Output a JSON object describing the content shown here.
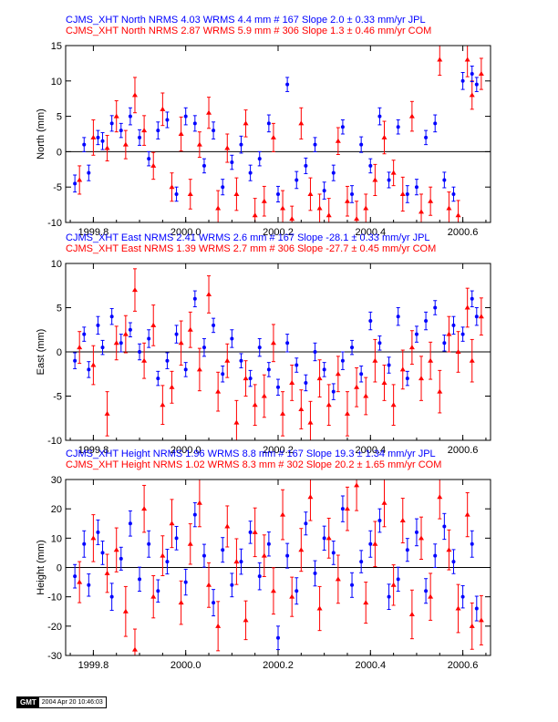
{
  "colors": {
    "jpl": "#0000ff",
    "com": "#ff0000",
    "axis": "#000000"
  },
  "stamp": {
    "logo": "GMT",
    "timestamp": "2004 Apr 20 10:46:03"
  },
  "chart_data": [
    {
      "type": "scatter",
      "component": "North",
      "ylabel": "North (mm)",
      "xlim": [
        1999.74,
        2000.66
      ],
      "ylim": [
        -10,
        15
      ],
      "xticks": [
        1999.8,
        2000.0,
        2000.2,
        2000.4,
        2000.6
      ],
      "xtick_labels": [
        "1999.8",
        "2000.0",
        "2000.2",
        "2000.4",
        "2000.6"
      ],
      "yticks": [
        -10,
        -5,
        0,
        5,
        10,
        15
      ],
      "zero_line": true,
      "series": [
        {
          "name": "JPL",
          "title": "CJMS_XHT North NRMS 4.03 WRMS  4.4 mm # 167 Slope    2.0 ±  0.33 mm/yr JPL",
          "marker": "circle",
          "x": [
            1999.76,
            1999.78,
            1999.79,
            1999.81,
            1999.82,
            1999.84,
            1999.86,
            1999.88,
            1999.9,
            1999.92,
            1999.94,
            1999.96,
            1999.98,
            2000.0,
            2000.02,
            2000.04,
            2000.06,
            2000.08,
            2000.1,
            2000.12,
            2000.14,
            2000.16,
            2000.18,
            2000.2,
            2000.22,
            2000.24,
            2000.26,
            2000.28,
            2000.3,
            2000.32,
            2000.34,
            2000.36,
            2000.38,
            2000.4,
            2000.42,
            2000.44,
            2000.46,
            2000.48,
            2000.5,
            2000.52,
            2000.54,
            2000.56,
            2000.58,
            2000.6,
            2000.62,
            2000.63
          ],
          "y": [
            -4.5,
            1.0,
            -3.0,
            2.0,
            1.5,
            4.0,
            3.0,
            5.0,
            2.0,
            -1.0,
            3.0,
            4.5,
            -6.0,
            5.0,
            4.0,
            -2.0,
            3.0,
            -5.0,
            -1.5,
            1.0,
            -3.0,
            -1.0,
            4.0,
            -6.0,
            9.5,
            -4.0,
            -2.0,
            1.0,
            -5.5,
            -3.0,
            3.5,
            -6.0,
            1.0,
            -2.0,
            5.0,
            -4.0,
            3.5,
            -6.0,
            -5.0,
            2.0,
            4.0,
            -4.0,
            -6.0,
            10.0,
            11.0,
            9.5
          ],
          "err": [
            1.2,
            1.0,
            1.1,
            1.0,
            1.2,
            1.1,
            1.0,
            1.2,
            1.1,
            1.0,
            1.2,
            1.1,
            1.0,
            1.2,
            1.1,
            1.0,
            1.2,
            1.1,
            1.0,
            1.2,
            1.1,
            1.0,
            1.2,
            1.1,
            1.0,
            1.2,
            1.1,
            1.0,
            1.2,
            1.1,
            1.0,
            1.2,
            1.1,
            1.0,
            1.2,
            1.1,
            1.0,
            1.2,
            1.1,
            1.0,
            1.2,
            1.1,
            1.0,
            1.2,
            1.1,
            1.0
          ]
        },
        {
          "name": "COM",
          "title": "CJMS_XHT North NRMS 2.87 WRMS  5.9 mm # 306 Slope    1.3 ±  0.46 mm/yr COM",
          "marker": "triangle",
          "x": [
            1999.77,
            1999.8,
            1999.83,
            1999.85,
            1999.87,
            1999.89,
            1999.91,
            1999.93,
            1999.95,
            1999.97,
            1999.99,
            2000.01,
            2000.03,
            2000.05,
            2000.07,
            2000.09,
            2000.11,
            2000.13,
            2000.15,
            2000.17,
            2000.19,
            2000.21,
            2000.23,
            2000.25,
            2000.27,
            2000.29,
            2000.31,
            2000.33,
            2000.35,
            2000.37,
            2000.39,
            2000.41,
            2000.43,
            2000.45,
            2000.47,
            2000.49,
            2000.51,
            2000.53,
            2000.55,
            2000.57,
            2000.59,
            2000.61,
            2000.62,
            2000.64
          ],
          "y": [
            -4.0,
            2.0,
            0.5,
            5.0,
            1.0,
            8.0,
            3.0,
            -2.0,
            6.0,
            -5.0,
            2.5,
            -6.0,
            1.0,
            5.5,
            -8.0,
            0.5,
            -6.0,
            4.0,
            -9.0,
            -7.0,
            2.0,
            -8.0,
            -9.5,
            4.0,
            -6.0,
            -8.0,
            -9.0,
            1.5,
            -7.0,
            -9.5,
            -8.0,
            -4.0,
            2.0,
            -3.0,
            -6.0,
            5.0,
            -8.5,
            -7.0,
            13.0,
            -8.0,
            -9.0,
            13.0,
            8.0,
            11.0
          ],
          "err": [
            2.0,
            2.5,
            1.8,
            2.2,
            2.0,
            2.5,
            2.1,
            1.9,
            2.3,
            2.0,
            2.4,
            2.1,
            1.8,
            2.2,
            2.5,
            2.0,
            2.3,
            1.9,
            2.4,
            2.1,
            2.0,
            2.5,
            1.8,
            2.2,
            2.3,
            2.0,
            2.4,
            1.9,
            2.1,
            2.5,
            2.0,
            2.2,
            2.3,
            1.8,
            2.4,
            2.1,
            2.5,
            2.0,
            2.2,
            2.3,
            2.1,
            2.4,
            2.0,
            2.2
          ]
        }
      ]
    },
    {
      "type": "scatter",
      "component": "East",
      "ylabel": "East (mm)",
      "xlim": [
        1999.74,
        2000.66
      ],
      "ylim": [
        -10,
        10
      ],
      "xticks": [
        1999.8,
        2000.0,
        2000.2,
        2000.4,
        2000.6
      ],
      "xtick_labels": [
        "1999.8",
        "2000.0",
        "2000.2",
        "2000.4",
        "2000.6"
      ],
      "yticks": [
        -10,
        -5,
        0,
        5,
        10
      ],
      "zero_line": true,
      "series": [
        {
          "name": "JPL",
          "title": "CJMS_XHT East NRMS 2.41 WRMS  2.6 mm # 167 Slope  -28.1 ±  0.33 mm/yr JPL",
          "marker": "circle",
          "x": [
            1999.76,
            1999.78,
            1999.79,
            1999.81,
            1999.82,
            1999.84,
            1999.86,
            1999.88,
            1999.9,
            1999.92,
            1999.94,
            1999.96,
            1999.98,
            2000.0,
            2000.02,
            2000.04,
            2000.06,
            2000.08,
            2000.1,
            2000.12,
            2000.14,
            2000.16,
            2000.18,
            2000.2,
            2000.22,
            2000.24,
            2000.26,
            2000.28,
            2000.3,
            2000.32,
            2000.34,
            2000.36,
            2000.38,
            2000.4,
            2000.42,
            2000.44,
            2000.46,
            2000.48,
            2000.5,
            2000.52,
            2000.54,
            2000.56,
            2000.58,
            2000.6,
            2000.62,
            2000.63
          ],
          "y": [
            -1.0,
            2.0,
            -2.0,
            3.0,
            0.5,
            4.0,
            1.0,
            2.5,
            0.0,
            1.5,
            -3.0,
            -1.0,
            2.0,
            -2.0,
            6.0,
            0.5,
            3.0,
            -2.5,
            1.5,
            -1.0,
            -3.0,
            0.5,
            -2.0,
            -4.0,
            1.0,
            -1.5,
            -3.5,
            0.0,
            -2.0,
            -4.5,
            -1.0,
            0.5,
            -2.5,
            3.5,
            1.0,
            -1.5,
            4.0,
            -3.0,
            2.0,
            3.5,
            5.0,
            1.0,
            3.0,
            2.0,
            6.0,
            4.0
          ],
          "err": [
            0.9,
            0.8,
            0.9,
            1.0,
            0.8,
            0.9,
            1.0,
            0.8,
            0.9,
            1.0,
            0.8,
            0.9,
            1.0,
            0.8,
            0.9,
            1.0,
            0.8,
            0.9,
            1.0,
            0.8,
            0.9,
            1.0,
            0.8,
            0.9,
            1.0,
            0.8,
            0.9,
            1.0,
            0.8,
            0.9,
            1.0,
            0.8,
            0.9,
            1.0,
            0.8,
            0.9,
            1.0,
            0.8,
            0.9,
            1.0,
            0.8,
            0.9,
            1.0,
            0.8,
            0.9,
            1.0
          ]
        },
        {
          "name": "COM",
          "title": "CJMS_XHT East NRMS 1.39 WRMS  2.7 mm # 306 Slope  -27.7 ±  0.45 mm/yr COM",
          "marker": "triangle",
          "x": [
            1999.77,
            1999.8,
            1999.83,
            1999.85,
            1999.87,
            1999.89,
            1999.91,
            1999.93,
            1999.95,
            1999.97,
            1999.99,
            2000.01,
            2000.03,
            2000.05,
            2000.07,
            2000.09,
            2000.11,
            2000.13,
            2000.15,
            2000.17,
            2000.19,
            2000.21,
            2000.23,
            2000.25,
            2000.27,
            2000.29,
            2000.31,
            2000.33,
            2000.35,
            2000.37,
            2000.39,
            2000.41,
            2000.43,
            2000.45,
            2000.47,
            2000.49,
            2000.51,
            2000.53,
            2000.55,
            2000.57,
            2000.59,
            2000.61,
            2000.62,
            2000.64
          ],
          "y": [
            0.5,
            -1.5,
            -7.0,
            1.0,
            2.0,
            7.0,
            -1.0,
            3.0,
            -6.0,
            -4.0,
            1.0,
            2.5,
            -2.0,
            6.5,
            -4.5,
            -1.0,
            -8.0,
            -3.0,
            -6.0,
            -5.0,
            1.0,
            -7.0,
            -3.5,
            -6.5,
            -8.0,
            -3.0,
            -6.0,
            -2.5,
            -7.0,
            -4.0,
            -5.0,
            -1.0,
            -3.5,
            -6.0,
            -2.0,
            0.5,
            -3.0,
            -1.0,
            -4.5,
            2.0,
            0.0,
            5.0,
            -1.0,
            4.0
          ],
          "err": [
            1.8,
            2.2,
            2.5,
            1.9,
            2.1,
            2.4,
            2.0,
            2.3,
            2.2,
            1.8,
            2.5,
            2.0,
            2.4,
            2.1,
            2.2,
            1.9,
            2.5,
            2.0,
            2.3,
            2.4,
            2.1,
            2.5,
            2.0,
            2.2,
            2.4,
            2.1,
            2.3,
            2.0,
            2.5,
            2.2,
            2.1,
            2.4,
            2.0,
            2.3,
            2.2,
            1.9,
            2.5,
            2.1,
            2.4,
            2.0,
            2.3,
            2.2,
            2.4,
            2.1
          ]
        }
      ]
    },
    {
      "type": "scatter",
      "component": "Height",
      "ylabel": "Height (mm)",
      "xlim": [
        1999.74,
        2000.66
      ],
      "ylim": [
        -30,
        30
      ],
      "xticks": [
        1999.8,
        2000.0,
        2000.2,
        2000.4,
        2000.6
      ],
      "xtick_labels": [
        "1999.8",
        "2000.0",
        "2000.2",
        "2000.4",
        "2000.6"
      ],
      "yticks": [
        -30,
        -20,
        -10,
        0,
        10,
        20,
        30
      ],
      "zero_line": true,
      "series": [
        {
          "name": "JPL",
          "title": "CJMS_XHT Height NRMS 1.96 WRMS  8.8 mm # 167 Slope   19.3 ±  1.34 mm/yr JPL",
          "marker": "circle",
          "x": [
            1999.76,
            1999.78,
            1999.79,
            1999.81,
            1999.82,
            1999.84,
            1999.86,
            1999.88,
            1999.9,
            1999.92,
            1999.94,
            1999.96,
            1999.98,
            2000.0,
            2000.02,
            2000.04,
            2000.06,
            2000.08,
            2000.1,
            2000.12,
            2000.14,
            2000.16,
            2000.18,
            2000.2,
            2000.22,
            2000.24,
            2000.26,
            2000.28,
            2000.3,
            2000.32,
            2000.34,
            2000.36,
            2000.38,
            2000.4,
            2000.42,
            2000.44,
            2000.46,
            2000.48,
            2000.5,
            2000.52,
            2000.54,
            2000.56,
            2000.58,
            2000.6,
            2000.62,
            2000.63
          ],
          "y": [
            -3.0,
            8.0,
            -6.0,
            12.0,
            5.0,
            -10.0,
            3.0,
            15.0,
            -4.0,
            8.0,
            -8.0,
            2.0,
            10.0,
            -5.0,
            18.0,
            4.0,
            -12.0,
            6.0,
            -6.0,
            2.0,
            12.0,
            -3.0,
            8.0,
            -24.0,
            4.0,
            -8.0,
            15.0,
            -2.0,
            10.0,
            5.0,
            20.0,
            -6.0,
            2.0,
            8.0,
            16.0,
            -10.0,
            -4.0,
            6.0,
            12.0,
            -8.0,
            4.0,
            14.0,
            2.0,
            -10.0,
            8.0,
            -14.0
          ],
          "err": [
            4.0,
            4.5,
            3.8,
            4.2,
            4.0,
            4.6,
            3.9,
            4.3,
            4.1,
            4.5,
            3.8,
            4.2,
            4.0,
            4.4,
            4.1,
            3.9,
            4.5,
            4.2,
            4.0,
            4.3,
            3.8,
            4.6,
            4.1,
            4.0,
            4.2,
            4.5,
            3.9,
            4.3,
            4.1,
            4.0,
            4.4,
            4.2,
            3.8,
            4.5,
            4.0,
            4.3,
            4.1,
            3.9,
            4.6,
            4.2,
            4.0,
            4.4,
            4.1,
            3.8,
            4.5,
            4.2
          ]
        },
        {
          "name": "COM",
          "title": "CJMS_XHT Height NRMS 1.02 WRMS  8.3 mm # 302 Slope   20.2 ±  1.65 mm/yr COM",
          "marker": "triangle",
          "x": [
            1999.77,
            1999.8,
            1999.83,
            1999.85,
            1999.87,
            1999.89,
            1999.91,
            1999.93,
            1999.95,
            1999.97,
            1999.99,
            2000.01,
            2000.03,
            2000.05,
            2000.07,
            2000.09,
            2000.11,
            2000.13,
            2000.15,
            2000.17,
            2000.19,
            2000.21,
            2000.23,
            2000.25,
            2000.27,
            2000.29,
            2000.31,
            2000.33,
            2000.35,
            2000.37,
            2000.39,
            2000.41,
            2000.43,
            2000.45,
            2000.47,
            2000.49,
            2000.51,
            2000.53,
            2000.55,
            2000.57,
            2000.59,
            2000.61,
            2000.62,
            2000.64
          ],
          "y": [
            -5.0,
            10.0,
            -2.0,
            6.0,
            -15.0,
            -28.0,
            20.0,
            -10.0,
            4.0,
            15.0,
            -12.0,
            8.0,
            22.0,
            -6.0,
            -20.0,
            14.0,
            2.0,
            -18.0,
            12.0,
            4.0,
            -8.0,
            18.0,
            -10.0,
            6.0,
            24.0,
            -14.0,
            10.0,
            -4.0,
            20.0,
            28.0,
            -12.0,
            8.0,
            22.0,
            -6.0,
            16.0,
            -16.0,
            10.0,
            -10.0,
            24.0,
            6.0,
            -14.0,
            18.0,
            -20.0,
            -18.0
          ],
          "err": [
            7.0,
            8.0,
            6.5,
            7.5,
            8.5,
            7.0,
            8.0,
            7.2,
            6.8,
            8.2,
            7.4,
            6.9,
            8.1,
            7.6,
            8.4,
            7.0,
            7.8,
            6.6,
            8.3,
            7.1,
            7.9,
            8.5,
            6.7,
            7.3,
            8.0,
            7.5,
            6.8,
            8.2,
            7.4,
            8.6,
            7.0,
            7.7,
            8.1,
            6.9,
            7.6,
            8.3,
            7.2,
            8.0,
            7.4,
            6.8,
            8.2,
            7.5,
            7.9,
            8.4
          ]
        }
      ]
    }
  ]
}
